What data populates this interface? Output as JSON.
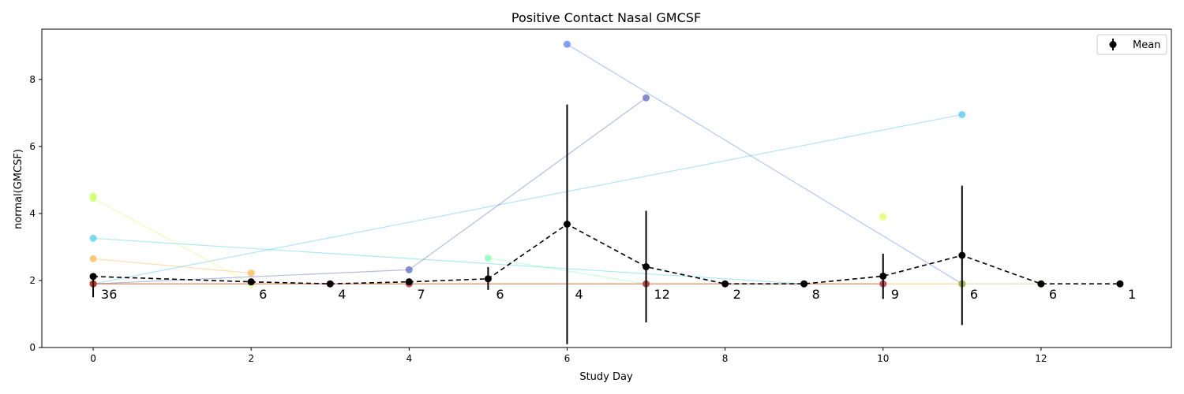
{
  "chart_data": {
    "type": "line",
    "title": "Positive Contact Nasal GMCSF",
    "xlabel": "Study Day",
    "ylabel": "normal(GMCSF)",
    "xlim": [
      -0.65,
      13.65
    ],
    "ylim": [
      0,
      9.5
    ],
    "xticks": [
      0,
      2,
      4,
      6,
      8,
      10,
      12
    ],
    "yticks": [
      0,
      2,
      4,
      6,
      8
    ],
    "grid": false,
    "legend": {
      "placement": "upper-right",
      "entries": [
        "Mean"
      ]
    },
    "subjects": [
      {
        "color": "#ffb74d",
        "x": [
          0,
          2
        ],
        "y": [
          2.65,
          2.22
        ]
      },
      {
        "color": "#ccff66",
        "x": [
          0,
          2
        ],
        "y": [
          4.45,
          1.9
        ]
      },
      {
        "color": "#ccff66",
        "x": [
          0
        ],
        "y": [
          4.52
        ]
      },
      {
        "color": "#4fc3f7",
        "x": [
          0,
          11
        ],
        "y": [
          1.9,
          6.95
        ]
      },
      {
        "color": "#4dd0e1",
        "x": [
          0,
          9
        ],
        "y": [
          3.26,
          1.9
        ]
      },
      {
        "color": "#5c6bc0",
        "x": [
          0,
          4,
          7
        ],
        "y": [
          1.9,
          2.32,
          7.45
        ]
      },
      {
        "color": "#80ffb0",
        "x": [
          5,
          7
        ],
        "y": [
          2.67,
          1.9
        ]
      },
      {
        "color": "#5c7cfa",
        "x": [
          6,
          11
        ],
        "y": [
          9.05,
          1.9
        ]
      },
      {
        "color": "#ddff55",
        "x": [
          10
        ],
        "y": [
          3.9
        ]
      },
      {
        "color": "#ff9800",
        "x": [
          0,
          11
        ],
        "y": [
          1.9,
          1.9
        ]
      },
      {
        "color": "#8bc34a",
        "x": [
          11,
          12
        ],
        "y": [
          1.9,
          1.9
        ]
      },
      {
        "color": "#b71c1c",
        "x": [
          0,
          4,
          7,
          10
        ],
        "y": [
          1.9,
          1.9,
          1.9,
          1.9
        ]
      }
    ],
    "mean_series": {
      "name": "Mean",
      "x": [
        0,
        2,
        3,
        4,
        5,
        6,
        7,
        8,
        9,
        10,
        11,
        12,
        13
      ],
      "y": [
        2.12,
        1.96,
        1.9,
        1.96,
        2.05,
        3.68,
        2.41,
        1.9,
        1.9,
        2.13,
        2.75,
        1.9,
        1.9
      ],
      "error_low": [
        1.5,
        1.9,
        1.9,
        1.9,
        1.72,
        0.1,
        0.75,
        1.9,
        1.9,
        1.45,
        0.67,
        1.9,
        1.9
      ],
      "error_high": [
        2.12,
        2.0,
        1.9,
        1.96,
        2.4,
        7.25,
        4.08,
        1.9,
        1.9,
        2.8,
        4.83,
        1.9,
        1.9
      ]
    },
    "count_labels": [
      {
        "x": 0,
        "label": "36"
      },
      {
        "x": 2,
        "label": "6"
      },
      {
        "x": 3,
        "label": "4"
      },
      {
        "x": 4,
        "label": "7"
      },
      {
        "x": 5,
        "label": "6"
      },
      {
        "x": 6,
        "label": "4"
      },
      {
        "x": 7,
        "label": "12"
      },
      {
        "x": 8,
        "label": "2"
      },
      {
        "x": 9,
        "label": "8"
      },
      {
        "x": 10,
        "label": "9"
      },
      {
        "x": 11,
        "label": "6"
      },
      {
        "x": 12,
        "label": "6"
      },
      {
        "x": 13,
        "label": "1"
      }
    ],
    "count_label_y": 1.6
  }
}
